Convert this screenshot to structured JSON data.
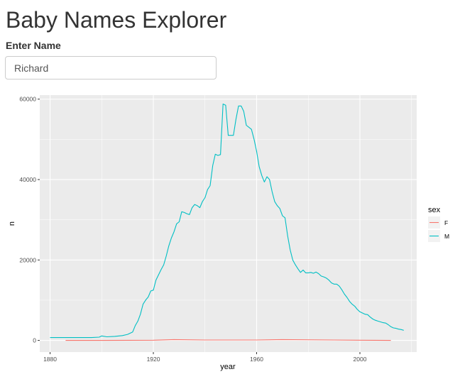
{
  "app": {
    "title": "Baby Names Explorer"
  },
  "form": {
    "label": "Enter Name",
    "name_value": "Richard"
  },
  "colors": {
    "panel": "#ebebeb",
    "grid": "#ffffff",
    "female": "#f8766d",
    "male": "#00bfc4"
  },
  "chart_data": {
    "type": "line",
    "xlabel": "year",
    "ylabel": "n",
    "xlim": [
      1876,
      2022
    ],
    "ylim": [
      -2900,
      61000
    ],
    "x_ticks": [
      1880,
      1920,
      1960,
      2000
    ],
    "y_ticks": [
      0,
      20000,
      40000,
      60000
    ],
    "x_tick_labels": [
      "1880",
      "1920",
      "1960",
      "2000"
    ],
    "y_tick_labels": [
      "0",
      "20000",
      "40000",
      "60000"
    ],
    "grid": true,
    "legend": {
      "title": "sex",
      "position": "right"
    },
    "series": [
      {
        "name": "F",
        "color": "#f8766d",
        "x": [
          1886,
          1900,
          1920,
          1928,
          1940,
          1960,
          1970,
          1990,
          2000,
          2012
        ],
        "y": [
          0,
          0,
          50,
          200,
          100,
          100,
          200,
          100,
          50,
          0
        ]
      },
      {
        "name": "M",
        "color": "#00bfc4",
        "x": [
          1880,
          1884,
          1888,
          1892,
          1896,
          1899,
          1900,
          1902,
          1905,
          1908,
          1910,
          1912,
          1913,
          1914,
          1915,
          1916,
          1917,
          1918,
          1919,
          1920,
          1921,
          1922,
          1923,
          1924,
          1925,
          1926,
          1927,
          1928,
          1929,
          1930,
          1931,
          1932,
          1933,
          1934,
          1935,
          1936,
          1937,
          1938,
          1939,
          1940,
          1941,
          1942,
          1943,
          1944,
          1945,
          1946,
          1947,
          1948,
          1949,
          1950,
          1951,
          1952,
          1953,
          1954,
          1955,
          1956,
          1957,
          1958,
          1959,
          1960,
          1961,
          1962,
          1963,
          1964,
          1965,
          1966,
          1967,
          1968,
          1969,
          1970,
          1971,
          1972,
          1973,
          1974,
          1975,
          1976,
          1977,
          1978,
          1979,
          1980,
          1981,
          1982,
          1983,
          1984,
          1985,
          1986,
          1987,
          1988,
          1989,
          1990,
          1991,
          1992,
          1993,
          1994,
          1995,
          1996,
          1997,
          1998,
          1999,
          2000,
          2001,
          2002,
          2003,
          2004,
          2005,
          2006,
          2007,
          2008,
          2009,
          2010,
          2011,
          2012,
          2013,
          2014,
          2015,
          2016,
          2017
        ],
        "y": [
          700,
          700,
          700,
          700,
          700,
          800,
          1100,
          900,
          1000,
          1200,
          1500,
          2100,
          3700,
          4800,
          6500,
          9000,
          10000,
          10800,
          12300,
          12500,
          15000,
          16300,
          17600,
          18800,
          21000,
          23500,
          25500,
          27000,
          29000,
          29500,
          32000,
          31800,
          31500,
          31300,
          33000,
          33800,
          33500,
          33000,
          34500,
          35500,
          37500,
          38500,
          43500,
          46300,
          46000,
          46200,
          58800,
          58500,
          51000,
          51000,
          51000,
          55000,
          58300,
          58300,
          57000,
          53500,
          53000,
          52500,
          50000,
          47000,
          43200,
          41000,
          39400,
          40700,
          40000,
          37000,
          34500,
          33500,
          32800,
          31000,
          30500,
          26000,
          22500,
          20000,
          18800,
          17800,
          16900,
          17500,
          16800,
          16800,
          16900,
          16700,
          17000,
          16600,
          16000,
          15800,
          15500,
          15000,
          14300,
          14000,
          14000,
          13500,
          12600,
          11500,
          10700,
          9700,
          9000,
          8500,
          7700,
          7100,
          6800,
          6500,
          6400,
          5800,
          5300,
          5000,
          4800,
          4600,
          4400,
          4300,
          3900,
          3400,
          3100,
          3000,
          2800,
          2700,
          2500
        ]
      }
    ]
  }
}
